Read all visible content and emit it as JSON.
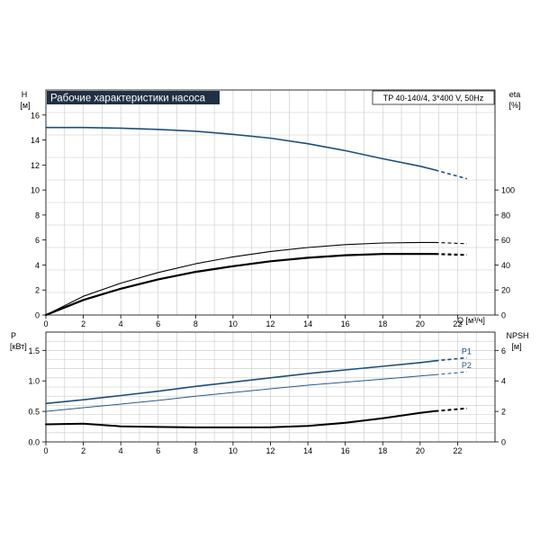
{
  "chart_data": [
    {
      "type": "line",
      "title": "Рабочие характеристики насоса",
      "subtitle": "TP 40-140/4, 3*400 V, 50Hz",
      "xlabel": "Q [м³/ч]",
      "ylabel": "H",
      "ylabel_unit": "[м]",
      "y2label": "eta",
      "y2label_unit": "[%]",
      "xlim": [
        0,
        24
      ],
      "ylim": [
        0,
        18
      ],
      "y2lim": [
        0,
        180
      ],
      "x_ticks": [
        "0",
        "2",
        "4",
        "6",
        "8",
        "10",
        "12",
        "14",
        "16",
        "18",
        "20",
        "22"
      ],
      "y_ticks": [
        "0",
        "2",
        "4",
        "6",
        "8",
        "10",
        "12",
        "14",
        "16"
      ],
      "y2_ticks": [
        "0",
        "20",
        "40",
        "60",
        "80",
        "100"
      ],
      "grid": true,
      "series": [
        {
          "id": "H",
          "axis": "left",
          "color": "#1d4f7c",
          "x": [
            0,
            2,
            4,
            6,
            8,
            10,
            12,
            14,
            16,
            18,
            20,
            20.8,
            22.5
          ],
          "y": [
            15.0,
            15.0,
            14.95,
            14.85,
            14.7,
            14.45,
            14.15,
            13.7,
            13.15,
            12.5,
            11.9,
            11.6,
            10.9
          ],
          "solid_until": 20.8
        },
        {
          "id": "eta",
          "axis": "right",
          "color": "#000000",
          "x": [
            0,
            2,
            4,
            6,
            8,
            10,
            12,
            14,
            16,
            18,
            20,
            20.8,
            22.5
          ],
          "y": [
            0,
            12,
            21,
            28.5,
            34.5,
            39,
            43,
            45.8,
            47.8,
            48.8,
            48.9,
            48.8,
            48
          ],
          "solid_until": 20.8
        },
        {
          "id": "eta-upper",
          "axis": "right",
          "color": "#000000",
          "x": [
            0,
            2,
            4,
            6,
            8,
            10,
            12,
            14,
            16,
            18,
            20,
            20.8,
            22.5
          ],
          "y": [
            0,
            15,
            25.5,
            34,
            41,
            46.5,
            50.8,
            54,
            56.3,
            57.6,
            58,
            58,
            57
          ],
          "solid_until": 20.8
        }
      ]
    },
    {
      "type": "line",
      "ylabel": "P",
      "ylabel_unit": "[кВт]",
      "y2label": "NPSH",
      "y2label_unit": "[м]",
      "xlim": [
        0,
        24
      ],
      "ylim": [
        0,
        1.8
      ],
      "y2lim": [
        0,
        7.2
      ],
      "x_ticks": [
        "0",
        "2",
        "4",
        "6",
        "8",
        "10",
        "12",
        "14",
        "16",
        "18",
        "20",
        "22"
      ],
      "y_ticks": [
        "0.0",
        "0.5",
        "1.0",
        "1.5"
      ],
      "y2_ticks": [
        "0",
        "2",
        "4",
        "6"
      ],
      "grid": true,
      "series": [
        {
          "name": "P1",
          "axis": "left",
          "color": "#1d4f7c",
          "x": [
            0,
            2,
            4,
            6,
            8,
            10,
            12,
            14,
            16,
            18,
            20,
            20.8,
            22.5
          ],
          "y": [
            0.63,
            0.69,
            0.76,
            0.83,
            0.91,
            0.98,
            1.05,
            1.12,
            1.18,
            1.24,
            1.3,
            1.33,
            1.38
          ],
          "solid_until": 20.8
        },
        {
          "name": "P2",
          "axis": "left",
          "color": "#2a5a88",
          "x": [
            0,
            2,
            4,
            6,
            8,
            10,
            12,
            14,
            16,
            18,
            20,
            20.8,
            22.5
          ],
          "y": [
            0.5,
            0.56,
            0.62,
            0.68,
            0.75,
            0.81,
            0.87,
            0.93,
            0.98,
            1.03,
            1.08,
            1.1,
            1.15
          ],
          "solid_until": 20.8
        },
        {
          "id": "NPSH",
          "axis": "right",
          "color": "#000000",
          "x": [
            0,
            2,
            4,
            6,
            8,
            10,
            12,
            14,
            16,
            18,
            20,
            20.8,
            22.5
          ],
          "y": [
            1.15,
            1.2,
            1.02,
            0.98,
            0.95,
            0.95,
            0.96,
            1.05,
            1.25,
            1.55,
            1.9,
            2.02,
            2.2
          ],
          "solid_until": 20.8
        }
      ]
    }
  ]
}
